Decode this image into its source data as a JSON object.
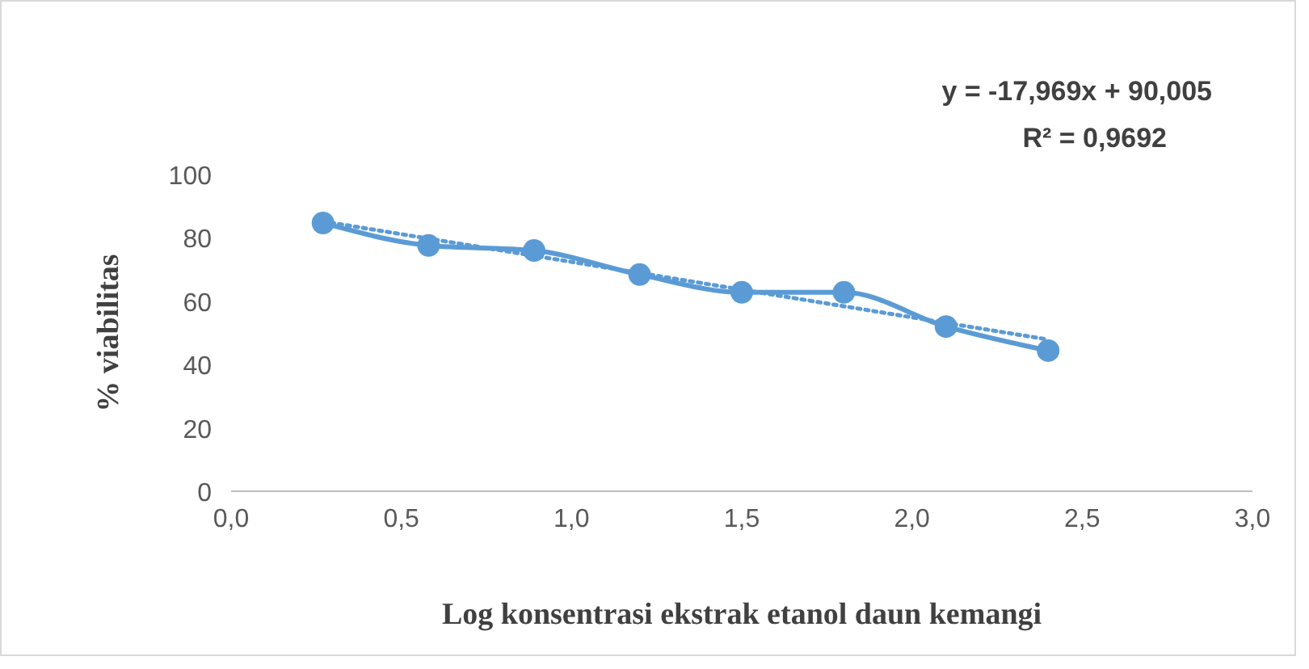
{
  "chart_data": {
    "type": "line",
    "xlabel": "Log konsentrasi ekstrak etanol daun kemangi",
    "ylabel": "% viabilitas",
    "annotations": [
      "y = -17,969x + 90,005",
      "R² = 0,9692"
    ],
    "xlim": [
      0,
      3
    ],
    "xticks": [
      {
        "value": 0,
        "label": "0,0"
      },
      {
        "value": 0.5,
        "label": "0,5"
      },
      {
        "value": 1,
        "label": "1,0"
      },
      {
        "value": 1.5,
        "label": "1,5"
      },
      {
        "value": 2,
        "label": "2,0"
      },
      {
        "value": 2.5,
        "label": "2,5"
      },
      {
        "value": 3,
        "label": "3,0"
      }
    ],
    "ylim": [
      0,
      100
    ],
    "yticks": [
      0,
      20,
      40,
      60,
      80,
      100
    ],
    "grid": false,
    "series": [
      {
        "color": "#5b9bd5",
        "marker": "circle",
        "line_style": "solid",
        "x": [
          0.27,
          0.58,
          0.89,
          1.2,
          1.5,
          1.8,
          2.1,
          2.4
        ],
        "values": [
          84.7,
          77.6,
          76,
          68.4,
          62.8,
          62.8,
          52,
          44.4
        ]
      },
      {
        "color": "#5b9bd5",
        "line_style": "dotted",
        "x": [
          0.27,
          2.4
        ],
        "values": [
          85.2,
          47.9
        ]
      }
    ]
  }
}
